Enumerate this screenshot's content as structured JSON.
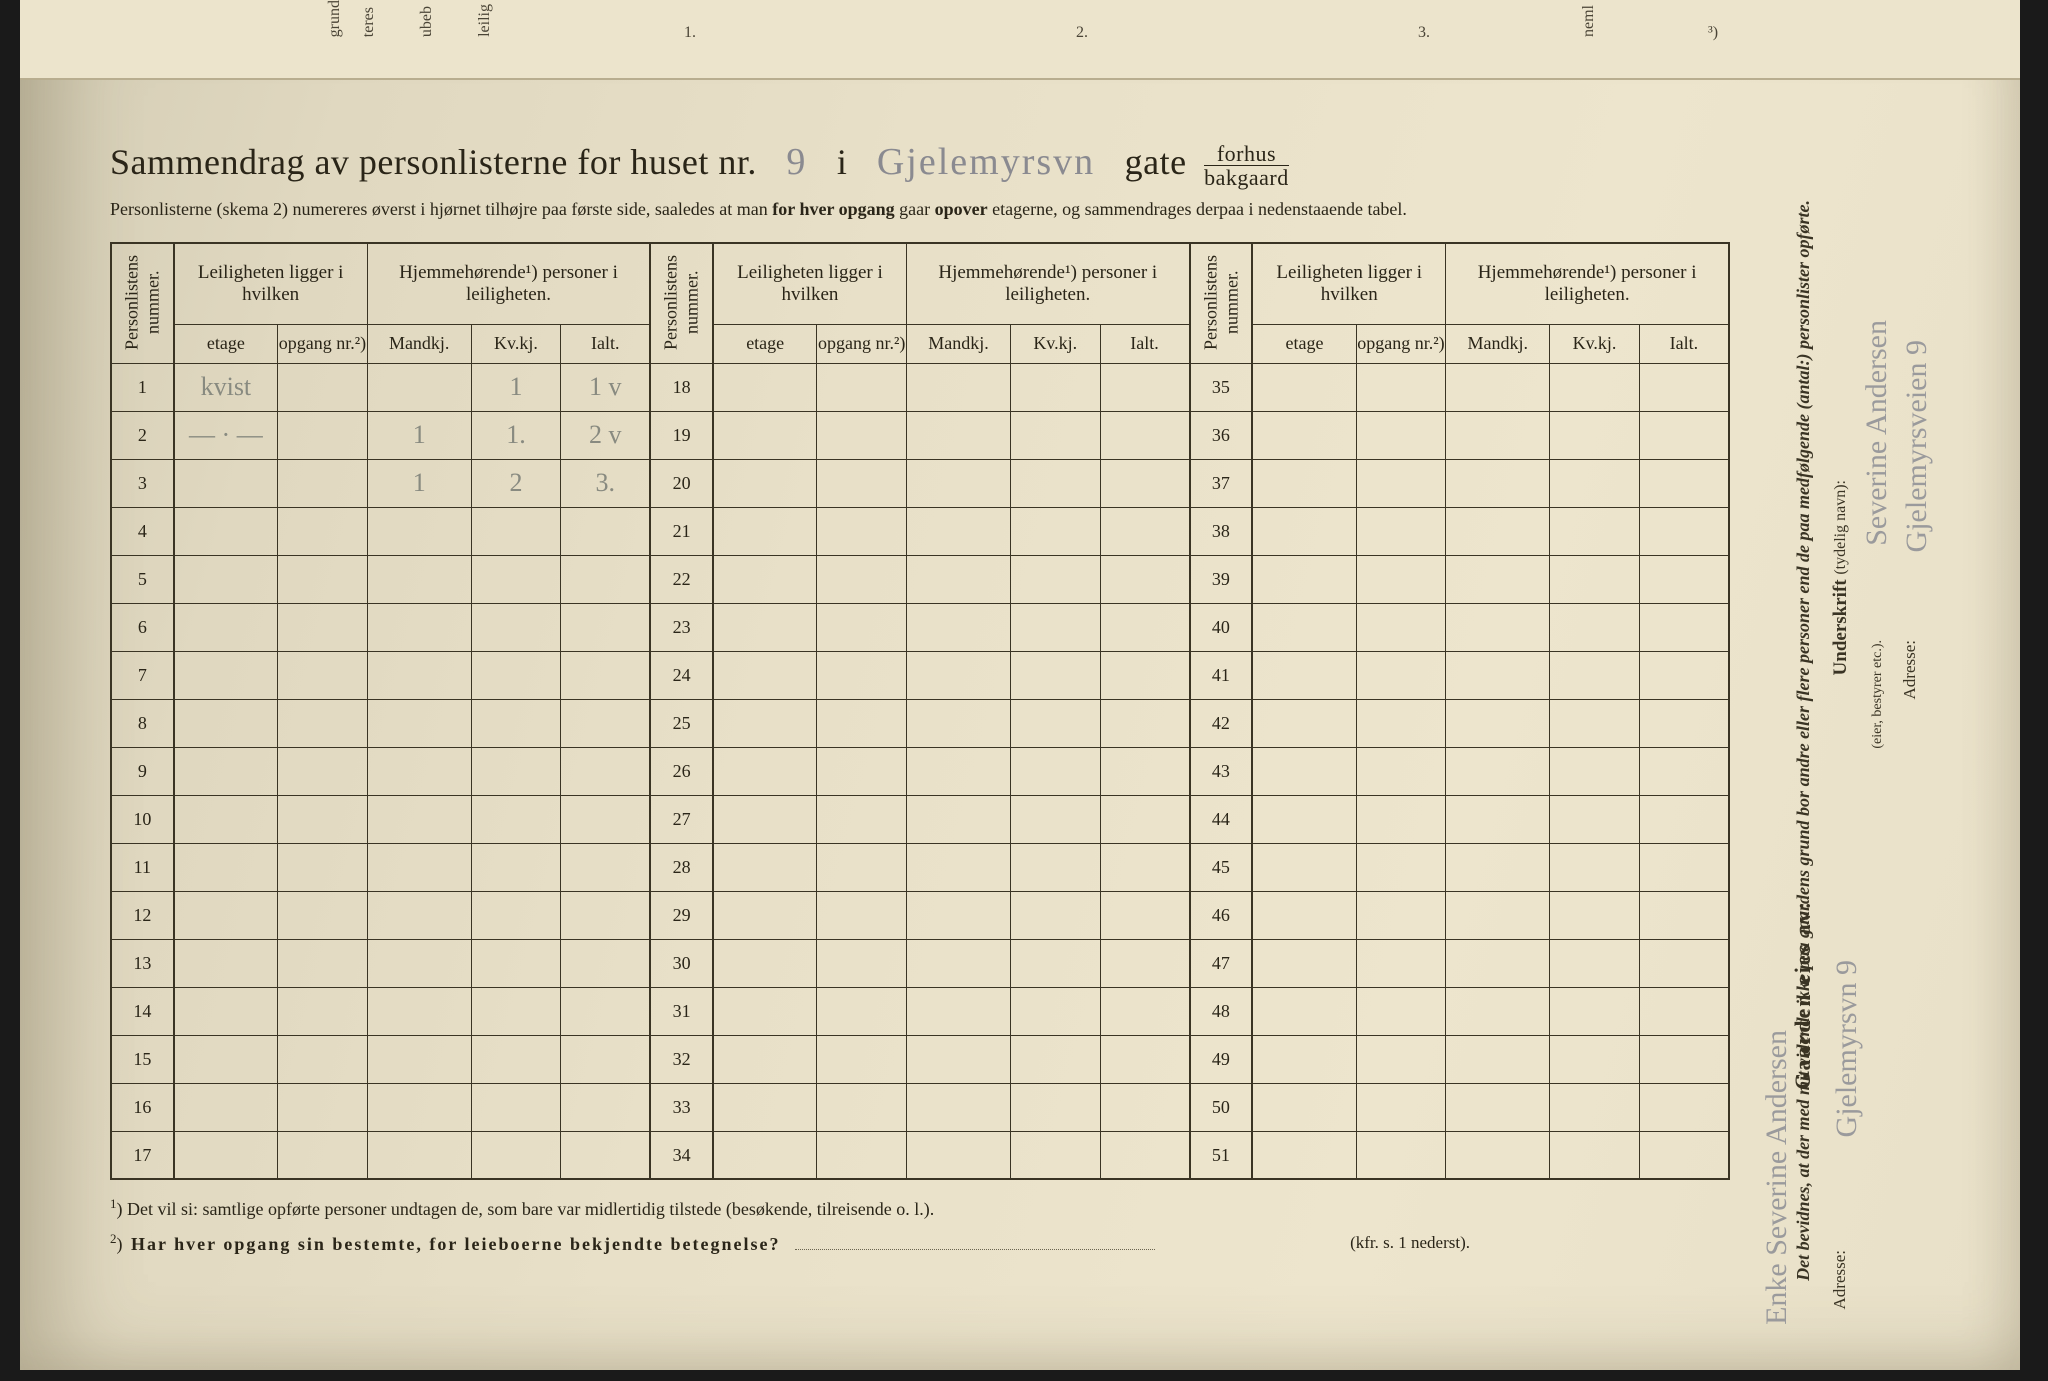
{
  "title_prefix": "Sammendrag av personlisterne for huset nr.",
  "house_number": "9",
  "title_i": "i",
  "street_name": "Gjelemyrsvn",
  "title_gate": "gate",
  "frac_top": "forhus",
  "frac_bot": "bakgaard",
  "subtitle": "Personlisterne (skema 2) numereres øverst i hjørnet tilhøjre paa første side, saaledes at man for hver opgang gaar opover etagerne, og sammendrages derpaa i nedenstaaende tabel.",
  "headers": {
    "personlistens": "Personlistens nummer.",
    "leilighet": "Leiligheten ligger i hvilken",
    "hjemme": "Hjemmehørende¹) personer i leiligheten.",
    "etage": "etage",
    "opgang": "opgang nr.²)",
    "mandkj": "Mandkj.",
    "kvkj": "Kv.kj.",
    "ialt": "Ialt."
  },
  "rows_block1": [
    {
      "n": "1",
      "etage": "kvist",
      "opgang": "",
      "m": "",
      "k": "1",
      "i": "1 v"
    },
    {
      "n": "2",
      "etage": "— · —",
      "opgang": "",
      "m": "1",
      "k": "1.",
      "i": "2 v"
    },
    {
      "n": "3",
      "etage": "",
      "opgang": "",
      "m": "1",
      "k": "2",
      "i": "3."
    },
    {
      "n": "4"
    },
    {
      "n": "5"
    },
    {
      "n": "6"
    },
    {
      "n": "7"
    },
    {
      "n": "8"
    },
    {
      "n": "9"
    },
    {
      "n": "10"
    },
    {
      "n": "11"
    },
    {
      "n": "12"
    },
    {
      "n": "13"
    },
    {
      "n": "14"
    },
    {
      "n": "15"
    },
    {
      "n": "16"
    },
    {
      "n": "17"
    }
  ],
  "rows_block2": [
    "18",
    "19",
    "20",
    "21",
    "22",
    "23",
    "24",
    "25",
    "26",
    "27",
    "28",
    "29",
    "30",
    "31",
    "32",
    "33",
    "34"
  ],
  "rows_block3": [
    "35",
    "36",
    "37",
    "38",
    "39",
    "40",
    "41",
    "42",
    "43",
    "44",
    "45",
    "46",
    "47",
    "48",
    "49",
    "50",
    "51"
  ],
  "footnote1_sup": "1",
  "footnote1": ") Det vil si: samtlige opførte personer undtagen de, som bare var midlertidig tilstede (besøkende, tilreisende o. l.).",
  "footnote2_sup": "2",
  "footnote2": ") Har hver opgang sin bestemte, for leieboerne bekjendte betegnelse?",
  "kfr": "(kfr. s. 1 nederst).",
  "side": {
    "owner_label": "Gaarden eies av:",
    "owner_hand": "Enke Severine Andersen",
    "address_label": "Adresse:",
    "address_hand": "Gjelemyrsvn 9",
    "cert": "Det bevidnes, at der med mit vidende ikke paa gaardens grund bor andre eller flere personer end de paa medfølgende (antal:) personlister opførte.",
    "underskrift": "Underskrift",
    "underskrift_sub": "(tydelig navn):",
    "underskrift_hand": "Severine Andersen",
    "addr2": "Adresse:",
    "addr2_hand": "Gjelemyrsveien 9",
    "eier": "(eier, bestyrer etc.)."
  },
  "top_rotated": [
    "grund",
    "teres",
    "ubeb",
    "leilig"
  ],
  "top_nums": [
    "1.",
    "2.",
    "3.",
    "neml",
    "³)"
  ]
}
